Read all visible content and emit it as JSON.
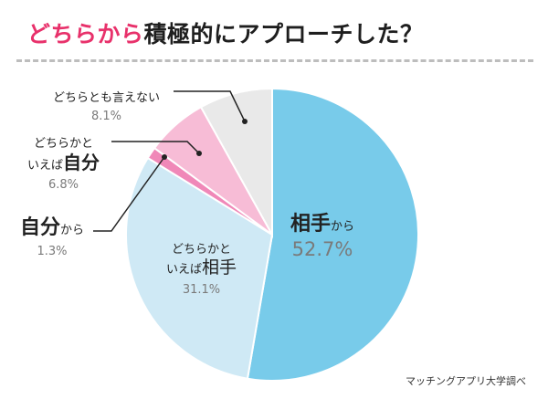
{
  "title": {
    "accent": "どちらから",
    "rest": "積極的にアプローチした？"
  },
  "source": "マッチングアプリ大学調べ",
  "chart_data": {
    "type": "pie",
    "title": "どちらから積極的にアプローチした？",
    "start_angle_deg": 0,
    "direction": "clockwise",
    "slices": [
      {
        "key": "partner",
        "label_small_prefix": "",
        "label_big": "相手",
        "label_small_suffix": "から",
        "value": 52.7,
        "display_value": "52.7%",
        "color": "#78cbea"
      },
      {
        "key": "somewhat_partner",
        "label_small_prefix": "どちらかと",
        "label_line2_prefix": "いえば",
        "label_big": "相手",
        "value": 31.1,
        "display_value": "31.1%",
        "color": "#cfe9f5"
      },
      {
        "key": "self",
        "label_big": "自分",
        "label_small_suffix": "から",
        "value": 1.3,
        "display_value": "1.3%",
        "color": "#f088b8"
      },
      {
        "key": "somewhat_self",
        "label_small_prefix": "どちらかと",
        "label_line2_prefix": "いえば",
        "label_big": "自分",
        "value": 6.8,
        "display_value": "6.8%",
        "color": "#f7bcd6"
      },
      {
        "key": "neither",
        "label_small_prefix": "どちらとも言えない",
        "value": 8.1,
        "display_value": "8.1%",
        "color": "#e9e9e9"
      }
    ]
  }
}
